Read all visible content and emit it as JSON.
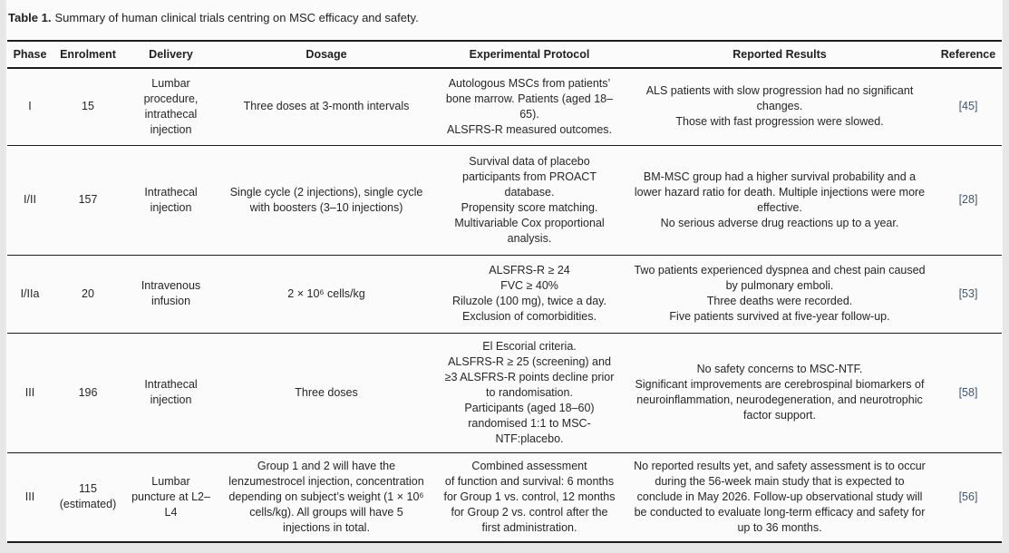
{
  "caption": {
    "label": "Table 1.",
    "text": "Summary of human clinical trials centring on MSC efficacy and safety."
  },
  "colors": {
    "reference_link": "#3b5773",
    "rule": "#1c1c1c",
    "text": "#262626",
    "page_background": "#e7e7e7",
    "panel_background": "#fbfbfb"
  },
  "table": {
    "headers": [
      "Phase",
      "Enrolment",
      "Delivery",
      "Dosage",
      "Experimental Protocol",
      "Reported Results",
      "Reference"
    ],
    "rows": [
      {
        "phase": "I",
        "enrolment": "15",
        "delivery": "Lumbar procedure, intrathecal injection",
        "dosage": "Three doses at 3-month intervals",
        "protocol": "Autologous MSCs from patients’ bone marrow. Patients (aged 18–65).\nALSFRS-R measured outcomes.",
        "results": "ALS patients with slow progression had no significant changes.\nThose with fast progression were slowed.",
        "reference": "[45]"
      },
      {
        "phase": "I/II",
        "enrolment": "157",
        "delivery": "Intrathecal injection",
        "dosage": "Single cycle (2 injections), single cycle with boosters (3–10 injections)",
        "protocol": "Survival data of placebo participants from PROACT database.\nPropensity score matching.\nMultivariable Cox proportional analysis.",
        "results": "BM-MSC group had a higher survival probability and a lower hazard ratio for death. Multiple injections were more effective.\nNo serious adverse drug reactions up to a year.",
        "reference": "[28]"
      },
      {
        "phase": "I/IIa",
        "enrolment": "20",
        "delivery": "Intravenous infusion",
        "dosage": "2 × 10⁶ cells/kg",
        "protocol": "ALSFRS-R ≥ 24\nFVC ≥ 40%\nRiluzole (100 mg), twice a day.\nExclusion of comorbidities.",
        "results": "Two patients experienced dyspnea and chest pain caused by pulmonary emboli.\nThree deaths were recorded.\nFive patients survived at five-year follow-up.",
        "reference": "[53]"
      },
      {
        "phase": "III",
        "enrolment": "196",
        "delivery": "Intrathecal injection",
        "dosage": "Three doses",
        "protocol": "El Escorial criteria.\nALSFRS-R ≥ 25 (screening) and ≥3 ALSFRS-R points decline prior to randomisation.\nParticipants (aged 18–60) randomised 1:1 to MSC-NTF:placebo.",
        "results": "No safety concerns to MSC-NTF.\nSignificant improvements are cerebrospinal biomarkers of neuroinflammation, neurodegeneration, and neurotrophic factor support.",
        "reference": "[58]"
      },
      {
        "phase": "III",
        "enrolment": "115\n(estimated)",
        "delivery": "Lumbar puncture at L2–L4",
        "dosage": "Group 1 and 2 will have the lenzumestrocel injection, concentration depending on subject’s weight (1 × 10⁶ cells/kg). All groups will have 5 injections in total.",
        "protocol": "Combined assessment\nof function and survival: 6 months for Group 1 vs. control, 12 months for Group 2 vs. control after the first administration.",
        "results": "No reported results yet, and safety assessment is to occur during the 56-week main study that is expected to conclude in May 2026. Follow-up observational study will be conducted to evaluate long-term efficacy and safety for up to 36 months.",
        "reference": "[56]"
      }
    ]
  }
}
